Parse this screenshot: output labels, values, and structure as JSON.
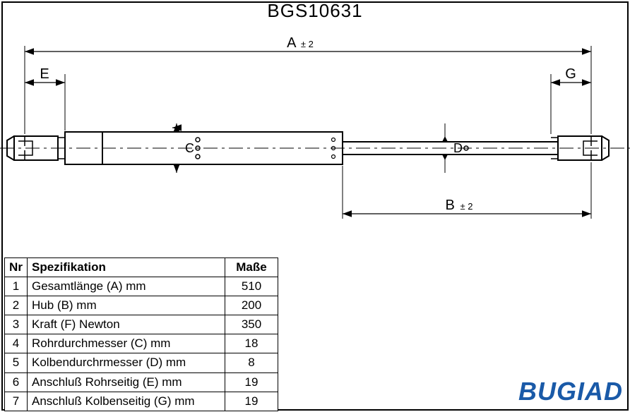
{
  "partNumber": "BGS10631",
  "brand": "BUGIAD",
  "colors": {
    "line": "#000000",
    "bg": "#ffffff",
    "brand": "#1a5aa8"
  },
  "dimensions": {
    "A": {
      "label": "A",
      "tol": "± 2"
    },
    "B": {
      "label": "B",
      "tol": "± 2"
    },
    "C": {
      "label": "C"
    },
    "D": {
      "label": "D"
    },
    "E": {
      "label": "E"
    },
    "G": {
      "label": "G"
    }
  },
  "table": {
    "headers": {
      "nr": "Nr",
      "spec": "Spezifikation",
      "val": "Maße"
    },
    "rows": [
      {
        "nr": "1",
        "spec": "Gesamtlänge (A) mm",
        "val": "510"
      },
      {
        "nr": "2",
        "spec": "Hub (B)  mm",
        "val": "200"
      },
      {
        "nr": "3",
        "spec": "Kraft (F) Newton",
        "val": "350"
      },
      {
        "nr": "4",
        "spec": "Rohrdurchmesser (C) mm",
        "val": "18"
      },
      {
        "nr": "5",
        "spec": "Kolbendurchrmesser (D) mm",
        "val": "8"
      },
      {
        "nr": "6",
        "spec": "Anschluß Rohrseitig (E) mm",
        "val": "19"
      },
      {
        "nr": "7",
        "spec": "Anschluß Kolbenseitig (G) mm",
        "val": "19"
      }
    ]
  }
}
